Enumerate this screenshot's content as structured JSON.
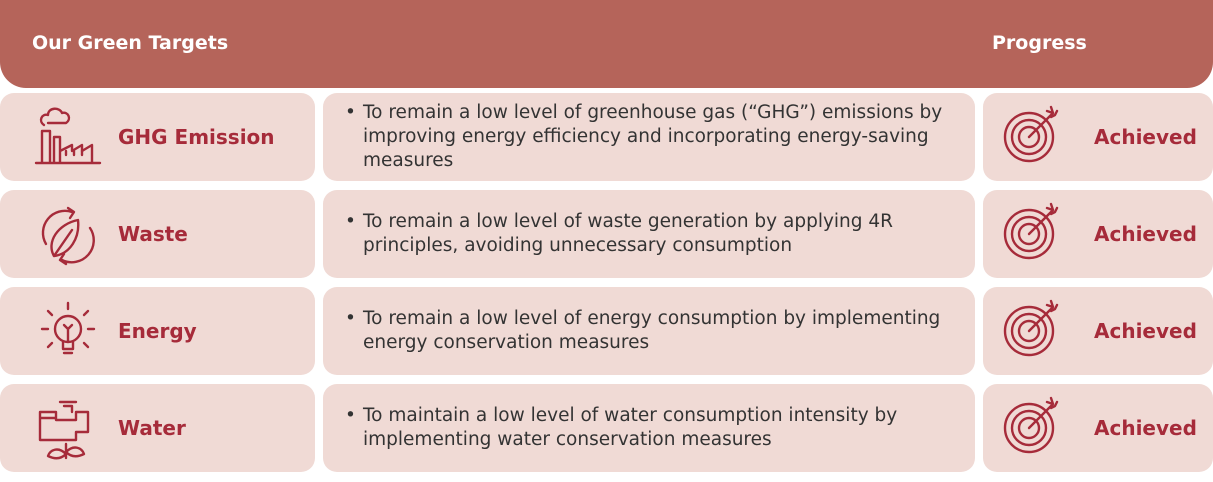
{
  "header": {
    "title": "Our Green Targets",
    "progress": "Progress"
  },
  "rows": [
    {
      "target": "GHG Emission",
      "description": "To remain a low level of greenhouse gas (“GHG”) emissions by improving energy efficiency and incorporating energy-saving measures",
      "progress": "Achieved"
    },
    {
      "target": "Waste",
      "description": "To remain a low level of waste generation by applying 4R principles, avoiding unnecessary consumption",
      "progress": "Achieved"
    },
    {
      "target": "Energy",
      "description": "To remain a low level of energy consumption by implementing energy conservation measures",
      "progress": "Achieved"
    },
    {
      "target": "Water",
      "description": "To maintain a low level of water consumption intensity by implementing water conservation measures",
      "progress": "Achieved"
    }
  ]
}
